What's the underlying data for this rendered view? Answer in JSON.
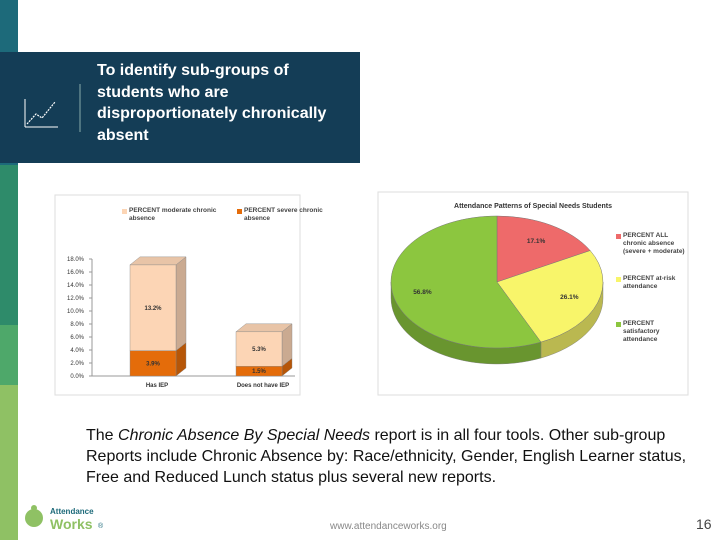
{
  "header": {
    "title": "To identify sub-groups of students who are disproportionately chronically absent"
  },
  "body": {
    "line1": [
      "The ",
      "Chronic Absence By Special Needs",
      " report is in all four tools. Other sub-group"
    ],
    "line2": "Reports include Chronic Absence by: Race/ethnicity, Gender, English Learner status,",
    "line3": "Free and Reduced Lunch status plus several new reports."
  },
  "footer": {
    "logo_top": "Attendance",
    "logo_bottom": "Works",
    "logo_mark": "®",
    "url": "www.attendanceworks.org",
    "page": 16
  },
  "chart_data": [
    {
      "type": "bar",
      "stacked": true,
      "categories": [
        "Has IEP",
        "Does not have IEP"
      ],
      "series": [
        {
          "name": "PERCENT severe chronic absence",
          "color": "#e46c0a",
          "values": [
            3.9,
            1.5
          ],
          "value_labels": [
            "3.9%",
            "1.5%"
          ]
        },
        {
          "name": "PERCENT moderate chronic absence",
          "color": "#fcd5b5",
          "values": [
            13.2,
            5.3
          ],
          "value_labels": [
            "13.2%",
            "5.3%"
          ]
        }
      ],
      "ylim": [
        0,
        18
      ],
      "yticks": [
        {
          "value": 0,
          "label": "0.0%"
        },
        {
          "value": 2,
          "label": "2.0%"
        },
        {
          "value": 4,
          "label": "4.0%"
        },
        {
          "value": 6,
          "label": "6.0%"
        },
        {
          "value": 8,
          "label": "8.0%"
        },
        {
          "value": 10,
          "label": "10.0%"
        },
        {
          "value": 12,
          "label": "12.0%"
        },
        {
          "value": 14,
          "label": "14.0%"
        },
        {
          "value": 16,
          "label": "16.0%"
        },
        {
          "value": 18,
          "label": "18.0%"
        }
      ]
    },
    {
      "type": "pie",
      "title": "Attendance Patterns of Special Needs Students",
      "categories": [
        "PERCENT ALL chronic absence (severe + moderate)",
        "PERCENT at-risk attendance",
        "PERCENT satisfactory attendance"
      ],
      "values": [
        17.1,
        26.1,
        56.8
      ],
      "value_labels": [
        "17.1%",
        "26.1%",
        "56.8%"
      ],
      "colors": [
        "#ee6a6a",
        "#f8f56a",
        "#8cc63f"
      ]
    }
  ]
}
